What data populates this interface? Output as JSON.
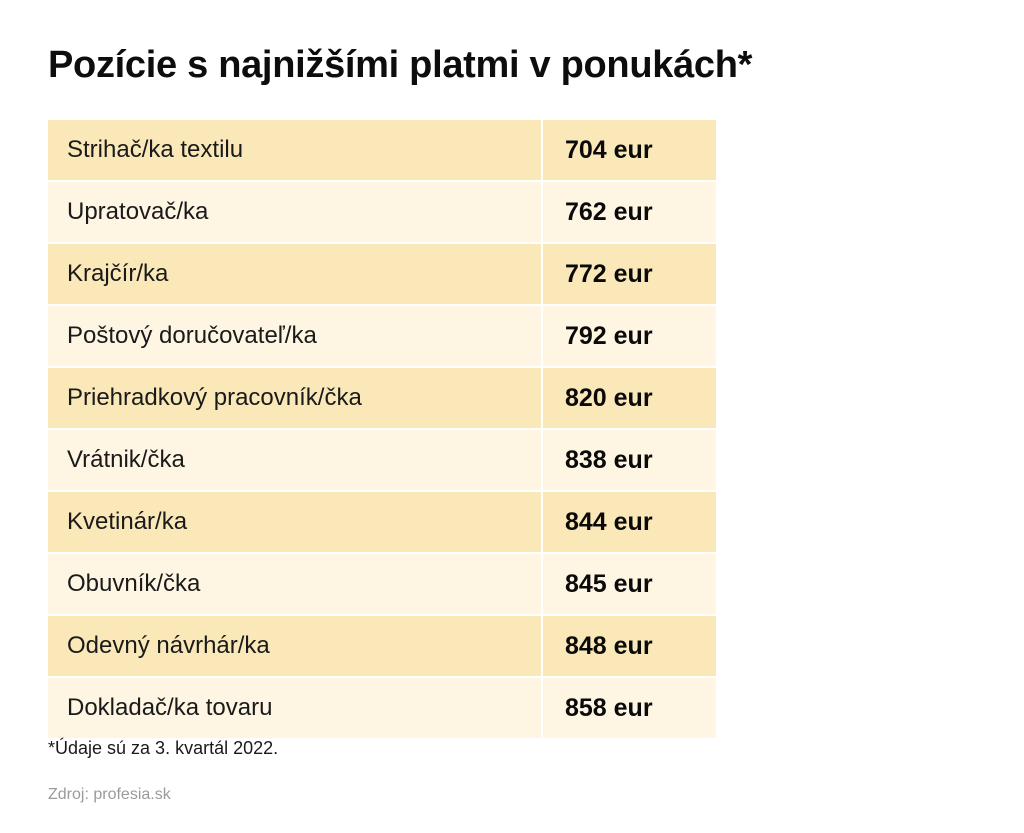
{
  "title": "Pozície s najnižšími platmi v ponukách*",
  "footnote": "*Údaje sú za 3. kvartál 2022.",
  "source": "Zdroj: profesia.sk",
  "colors": {
    "row_dark": "#fbe8b8",
    "row_light": "#fef6e3"
  },
  "chart_data": {
    "type": "table",
    "title": "Pozície s najnižšími platmi v ponukách*",
    "unit": "eur",
    "rows": [
      {
        "position": "Strihač/ka textilu",
        "salary": "704 eur",
        "value": 704
      },
      {
        "position": "Upratovač/ka",
        "salary": "762 eur",
        "value": 762
      },
      {
        "position": "Krajčír/ka",
        "salary": "772 eur",
        "value": 772
      },
      {
        "position": "Poštový doručovateľ/ka",
        "salary": "792 eur",
        "value": 792
      },
      {
        "position": "Priehradkový pracovník/čka",
        "salary": "820 eur",
        "value": 820
      },
      {
        "position": "Vrátnik/čka",
        "salary": "838 eur",
        "value": 838
      },
      {
        "position": "Kvetinár/ka",
        "salary": "844 eur",
        "value": 844
      },
      {
        "position": "Obuvník/čka",
        "salary": "845 eur",
        "value": 845
      },
      {
        "position": "Odevný návrhár/ka",
        "salary": "848 eur",
        "value": 848
      },
      {
        "position": "Dokladač/ka tovaru",
        "salary": "858 eur",
        "value": 858
      }
    ]
  }
}
